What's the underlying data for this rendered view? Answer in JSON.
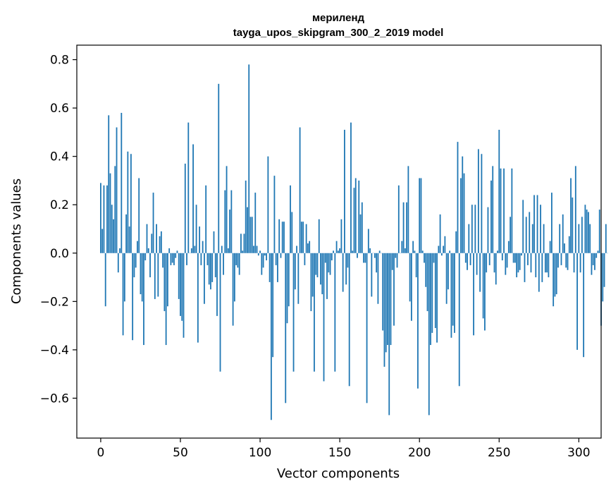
{
  "chart_data": {
    "type": "bar",
    "title_line1": "мериленд",
    "title_line2": "tayga_upos_skipgram_300_2_2019 model",
    "xlabel": "Vector components",
    "ylabel": "Components values",
    "xlim": [
      -15,
      314
    ],
    "ylim": [
      -0.765,
      0.86
    ],
    "xticks": [
      0,
      50,
      100,
      150,
      200,
      250,
      300
    ],
    "xtick_labels": [
      "0",
      "50",
      "100",
      "150",
      "200",
      "250",
      "300"
    ],
    "yticks": [
      -0.6,
      -0.4,
      -0.2,
      0.0,
      0.2,
      0.4,
      0.6,
      0.8
    ],
    "ytick_labels": [
      "−0.6",
      "−0.4",
      "−0.2",
      "0.0",
      "0.2",
      "0.4",
      "0.6",
      "0.8"
    ],
    "bar_color": "#1f77b4",
    "values": [
      0.29,
      0.1,
      0.28,
      -0.22,
      0.28,
      0.57,
      0.33,
      0.2,
      0.14,
      0.36,
      0.52,
      -0.08,
      0.02,
      0.58,
      -0.34,
      -0.2,
      0.16,
      0.42,
      0.11,
      0.41,
      -0.36,
      -0.1,
      -0.06,
      0.05,
      0.31,
      -0.17,
      -0.2,
      -0.38,
      -0.03,
      0.12,
      0.02,
      -0.1,
      0.08,
      0.25,
      -0.19,
      0.12,
      -0.18,
      0.07,
      0.09,
      -0.06,
      -0.24,
      -0.38,
      -0.22,
      0.02,
      -0.05,
      -0.04,
      -0.05,
      -0.02,
      0.01,
      -0.19,
      -0.26,
      -0.28,
      -0.35,
      0.37,
      -0.05,
      0.54,
      0.0,
      0.02,
      0.45,
      0.03,
      0.2,
      -0.37,
      0.11,
      -0.05,
      0.05,
      -0.21,
      0.28,
      -0.05,
      -0.13,
      -0.15,
      -0.12,
      0.09,
      -0.1,
      -0.26,
      0.7,
      -0.49,
      0.03,
      -0.09,
      0.26,
      0.36,
      0.02,
      0.18,
      0.26,
      -0.3,
      -0.2,
      -0.05,
      -0.06,
      -0.09,
      0.08,
      0.01,
      0.08,
      0.3,
      0.19,
      0.78,
      0.15,
      0.15,
      0.03,
      0.25,
      0.03,
      -0.01,
      0.01,
      -0.09,
      -0.06,
      -0.01,
      -0.03,
      0.4,
      -0.12,
      -0.69,
      -0.43,
      0.32,
      -0.05,
      -0.12,
      0.14,
      -0.02,
      0.13,
      0.13,
      -0.62,
      -0.29,
      -0.22,
      0.28,
      0.17,
      -0.49,
      -0.15,
      0.03,
      -0.21,
      0.52,
      0.13,
      0.13,
      -0.05,
      0.12,
      0.04,
      0.05,
      -0.24,
      -0.18,
      -0.49,
      -0.09,
      -0.1,
      0.14,
      -0.13,
      -0.17,
      -0.53,
      -0.04,
      -0.19,
      -0.08,
      -0.09,
      -0.03,
      0.01,
      -0.49,
      0.05,
      0.01,
      0.02,
      0.14,
      -0.16,
      0.51,
      -0.13,
      -0.06,
      -0.55,
      0.54,
      0.01,
      0.27,
      0.31,
      -0.02,
      0.3,
      0.16,
      0.21,
      -0.04,
      -0.04,
      -0.62,
      0.1,
      0.02,
      -0.18,
      0.0,
      -0.02,
      -0.08,
      -0.21,
      0.01,
      0.0,
      -0.32,
      -0.47,
      -0.41,
      -0.38,
      -0.67,
      -0.38,
      -0.07,
      -0.3,
      -0.02,
      -0.06,
      0.28,
      0.0,
      0.05,
      0.21,
      0.02,
      0.21,
      0.36,
      -0.2,
      -0.28,
      0.05,
      0.01,
      -0.1,
      -0.56,
      0.31,
      0.31,
      0.01,
      -0.04,
      -0.14,
      -0.24,
      -0.67,
      -0.38,
      -0.33,
      -0.04,
      -0.31,
      -0.37,
      0.03,
      0.16,
      -0.01,
      0.03,
      0.07,
      -0.21,
      -0.15,
      0.01,
      -0.35,
      -0.3,
      -0.33,
      0.09,
      0.46,
      -0.55,
      0.31,
      0.4,
      0.33,
      -0.04,
      -0.07,
      0.12,
      -0.05,
      0.2,
      -0.34,
      0.2,
      -0.09,
      0.43,
      -0.16,
      0.41,
      -0.27,
      -0.32,
      -0.08,
      0.19,
      -0.05,
      0.3,
      0.36,
      -0.08,
      -0.13,
      0.01,
      0.51,
      0.35,
      -0.03,
      0.35,
      -0.09,
      -0.06,
      0.05,
      0.15,
      0.35,
      -0.04,
      -0.04,
      -0.1,
      -0.08,
      -0.07,
      -0.01,
      0.22,
      -0.12,
      0.15,
      -0.05,
      0.17,
      -0.08,
      0.12,
      0.24,
      -0.1,
      0.24,
      -0.16,
      0.2,
      -0.12,
      0.12,
      -0.08,
      -0.08,
      -0.1,
      0.05,
      0.25,
      -0.22,
      -0.18,
      -0.17,
      -0.06,
      0.12,
      -0.05,
      0.16,
      0.04,
      -0.06,
      -0.07,
      0.07,
      0.31,
      0.23,
      -0.08,
      0.36,
      -0.4,
      0.12,
      -0.08,
      0.15,
      -0.43,
      0.2,
      0.18,
      0.17,
      0.12,
      -0.09,
      -0.05,
      -0.07,
      -0.02,
      0.01,
      0.18,
      -0.3,
      -0.2,
      -0.14,
      0.12,
      0.0
    ]
  }
}
